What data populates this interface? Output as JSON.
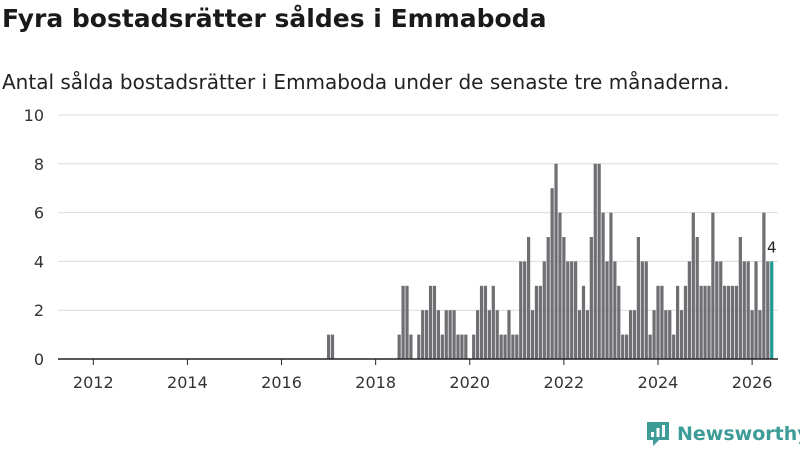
{
  "title": "Fyra bostadsrätter såldes i Emmaboda",
  "subtitle": "Antal sålda bostadsrätter i Emmaboda under de senaste tre månaderna.",
  "brand": {
    "name": "Newsworthy",
    "color": "#3d9c98"
  },
  "colors": {
    "bar": "#6f6e73",
    "highlight": "#1f9a93",
    "grid": "#dcdcdc"
  },
  "chart_data": {
    "type": "bar",
    "title": "Fyra bostadsrätter såldes i Emmaboda",
    "xlabel": "",
    "ylabel": "",
    "ylim": [
      0,
      10
    ],
    "yticks": [
      0,
      2,
      4,
      6,
      8,
      10
    ],
    "xlim": [
      2011.25,
      2026.55
    ],
    "xticks": [
      2012,
      2014,
      2016,
      2018,
      2020,
      2022,
      2024,
      2026
    ],
    "grid": true,
    "bar_interval": "month",
    "start": [
      2017,
      1
    ],
    "values": [
      1,
      1,
      0,
      0,
      0,
      0,
      0,
      0,
      0,
      0,
      0,
      0,
      0,
      0,
      0,
      0,
      0,
      0,
      1,
      3,
      3,
      1,
      0,
      1,
      2,
      2,
      3,
      3,
      2,
      1,
      2,
      2,
      2,
      1,
      1,
      1,
      0,
      1,
      2,
      3,
      3,
      2,
      3,
      2,
      1,
      1,
      2,
      1,
      1,
      4,
      4,
      5,
      2,
      3,
      3,
      4,
      5,
      7,
      8,
      6,
      5,
      4,
      4,
      4,
      2,
      3,
      2,
      5,
      8,
      8,
      6,
      4,
      6,
      4,
      3,
      1,
      1,
      2,
      2,
      5,
      4,
      4,
      1,
      2,
      3,
      3,
      2,
      2,
      1,
      3,
      2,
      3,
      4,
      6,
      5,
      3,
      3,
      3,
      6,
      4,
      4,
      3,
      3,
      3,
      3,
      5,
      4,
      4,
      2,
      4,
      2,
      6,
      4,
      4
    ],
    "highlight_last": true,
    "annotations": [
      {
        "label": "4"
      }
    ]
  }
}
